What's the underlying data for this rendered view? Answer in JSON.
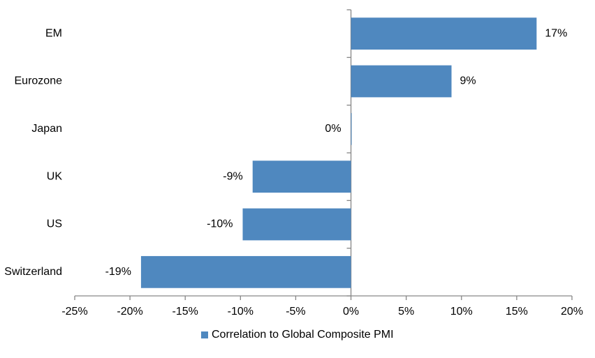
{
  "chart_data": {
    "type": "hbar",
    "categories": [
      "EM",
      "Eurozone",
      "Japan",
      "UK",
      "US",
      "Switzerland"
    ],
    "series": [
      {
        "name": "Correlation to Global Composite PMI",
        "color": "#4f88bf",
        "values": [
          16.8,
          9.1,
          0,
          -8.9,
          -9.8,
          -19.0
        ],
        "value_labels": [
          "17%",
          "9%",
          "0%",
          "-9%",
          "-10%",
          "-19%"
        ]
      }
    ],
    "xlim": [
      -25,
      20
    ],
    "xticks": [
      {
        "value": -25,
        "label": "-25%"
      },
      {
        "value": -20,
        "label": "-20%"
      },
      {
        "value": -15,
        "label": "-15%"
      },
      {
        "value": -10,
        "label": "-10%"
      },
      {
        "value": -5,
        "label": "-5%"
      },
      {
        "value": 0,
        "label": "0%"
      },
      {
        "value": 5,
        "label": "5%"
      },
      {
        "value": 10,
        "label": "10%"
      },
      {
        "value": 15,
        "label": "15%"
      },
      {
        "value": 20,
        "label": "20%"
      }
    ],
    "legend": "bottom"
  }
}
